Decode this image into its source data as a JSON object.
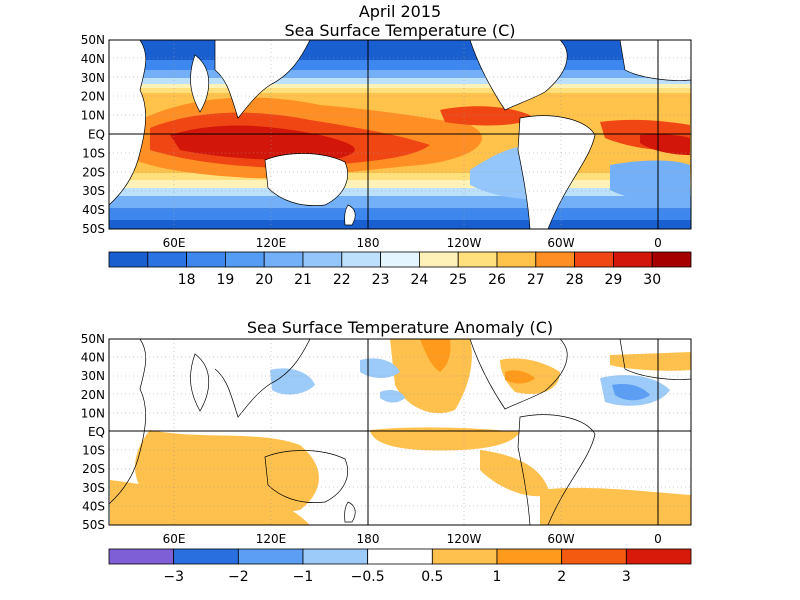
{
  "suptitle": "April 2015",
  "sst_panel": {
    "title": "Sea Surface Temperature (C)",
    "lat_labels": [
      "50N",
      "40N",
      "30N",
      "20N",
      "10N",
      "EQ",
      "10S",
      "20S",
      "30S",
      "40S",
      "50S"
    ],
    "lon_labels": [
      "60E",
      "120E",
      "180",
      "120W",
      "60W",
      "0"
    ],
    "colorbar": {
      "ticks": [
        "18",
        "19",
        "20",
        "21",
        "22",
        "23",
        "24",
        "25",
        "26",
        "27",
        "28",
        "29",
        "30"
      ],
      "colors": [
        "#1a5fcf",
        "#2a73e3",
        "#3d87ee",
        "#559cf4",
        "#73b0f8",
        "#95c6fb",
        "#bde0fd",
        "#e3f6ff",
        "#fff2b8",
        "#ffe07d",
        "#ffc24a",
        "#ff8f24",
        "#f04614",
        "#d3160a",
        "#a70000"
      ]
    }
  },
  "anom_panel": {
    "title": "Sea Surface Temperature Anomaly (C)",
    "lat_labels": [
      "50N",
      "40N",
      "30N",
      "20N",
      "10N",
      "EQ",
      "10S",
      "20S",
      "30S",
      "40S",
      "50S"
    ],
    "lon_labels": [
      "60E",
      "120E",
      "180",
      "120W",
      "60W",
      "0"
    ],
    "colorbar": {
      "ticks": [
        "−3",
        "−2",
        "−1",
        "−0.5",
        "0.5",
        "1",
        "2",
        "3"
      ],
      "colors": [
        "#7f5fd6",
        "#2a6fe0",
        "#5b9ef4",
        "#9ccaf9",
        "#ffffff",
        "#ffc14d",
        "#ff9a1c",
        "#f55b10",
        "#d81a0a"
      ]
    }
  }
}
